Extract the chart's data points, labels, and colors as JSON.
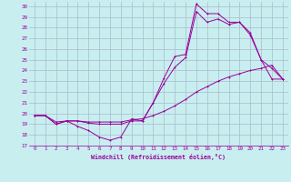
{
  "xlabel": "Windchill (Refroidissement éolien,°C)",
  "background_color": "#c8eef0",
  "grid_color": "#aabbcc",
  "line_color": "#990099",
  "xlim": [
    -0.5,
    23.5
  ],
  "ylim": [
    17,
    30.4
  ],
  "yticks": [
    17,
    18,
    19,
    20,
    21,
    22,
    23,
    24,
    25,
    26,
    27,
    28,
    29,
    30
  ],
  "xticks": [
    0,
    1,
    2,
    3,
    4,
    5,
    6,
    7,
    8,
    9,
    10,
    11,
    12,
    13,
    14,
    15,
    16,
    17,
    18,
    19,
    20,
    21,
    22,
    23
  ],
  "series1_x": [
    0,
    1,
    2,
    3,
    4,
    5,
    6,
    7,
    8,
    9,
    10,
    11,
    12,
    13,
    14,
    15,
    16,
    17,
    18,
    19,
    20,
    21,
    22,
    23
  ],
  "series1_y": [
    19.8,
    19.8,
    19.0,
    19.3,
    18.8,
    18.4,
    17.8,
    17.5,
    17.8,
    19.5,
    19.3,
    21.0,
    23.3,
    25.3,
    25.5,
    30.2,
    29.3,
    29.3,
    28.5,
    28.5,
    27.3,
    25.0,
    23.2,
    23.2
  ],
  "series2_x": [
    0,
    1,
    2,
    3,
    4,
    5,
    6,
    7,
    8,
    9,
    10,
    11,
    12,
    13,
    14,
    15,
    16,
    17,
    18,
    19,
    20,
    21,
    22,
    23
  ],
  "series2_y": [
    19.8,
    19.8,
    19.0,
    19.3,
    19.3,
    19.1,
    19.0,
    19.0,
    19.0,
    19.3,
    19.3,
    21.0,
    22.8,
    24.3,
    25.2,
    29.5,
    28.5,
    28.8,
    28.3,
    28.5,
    27.5,
    25.0,
    24.2,
    23.2
  ],
  "series3_x": [
    0,
    1,
    2,
    3,
    4,
    5,
    6,
    7,
    8,
    9,
    10,
    11,
    12,
    13,
    14,
    15,
    16,
    17,
    18,
    19,
    20,
    21,
    22,
    23
  ],
  "series3_y": [
    19.8,
    19.8,
    19.2,
    19.3,
    19.3,
    19.2,
    19.2,
    19.2,
    19.2,
    19.4,
    19.5,
    19.8,
    20.2,
    20.7,
    21.3,
    22.0,
    22.5,
    23.0,
    23.4,
    23.7,
    24.0,
    24.2,
    24.5,
    23.2
  ]
}
